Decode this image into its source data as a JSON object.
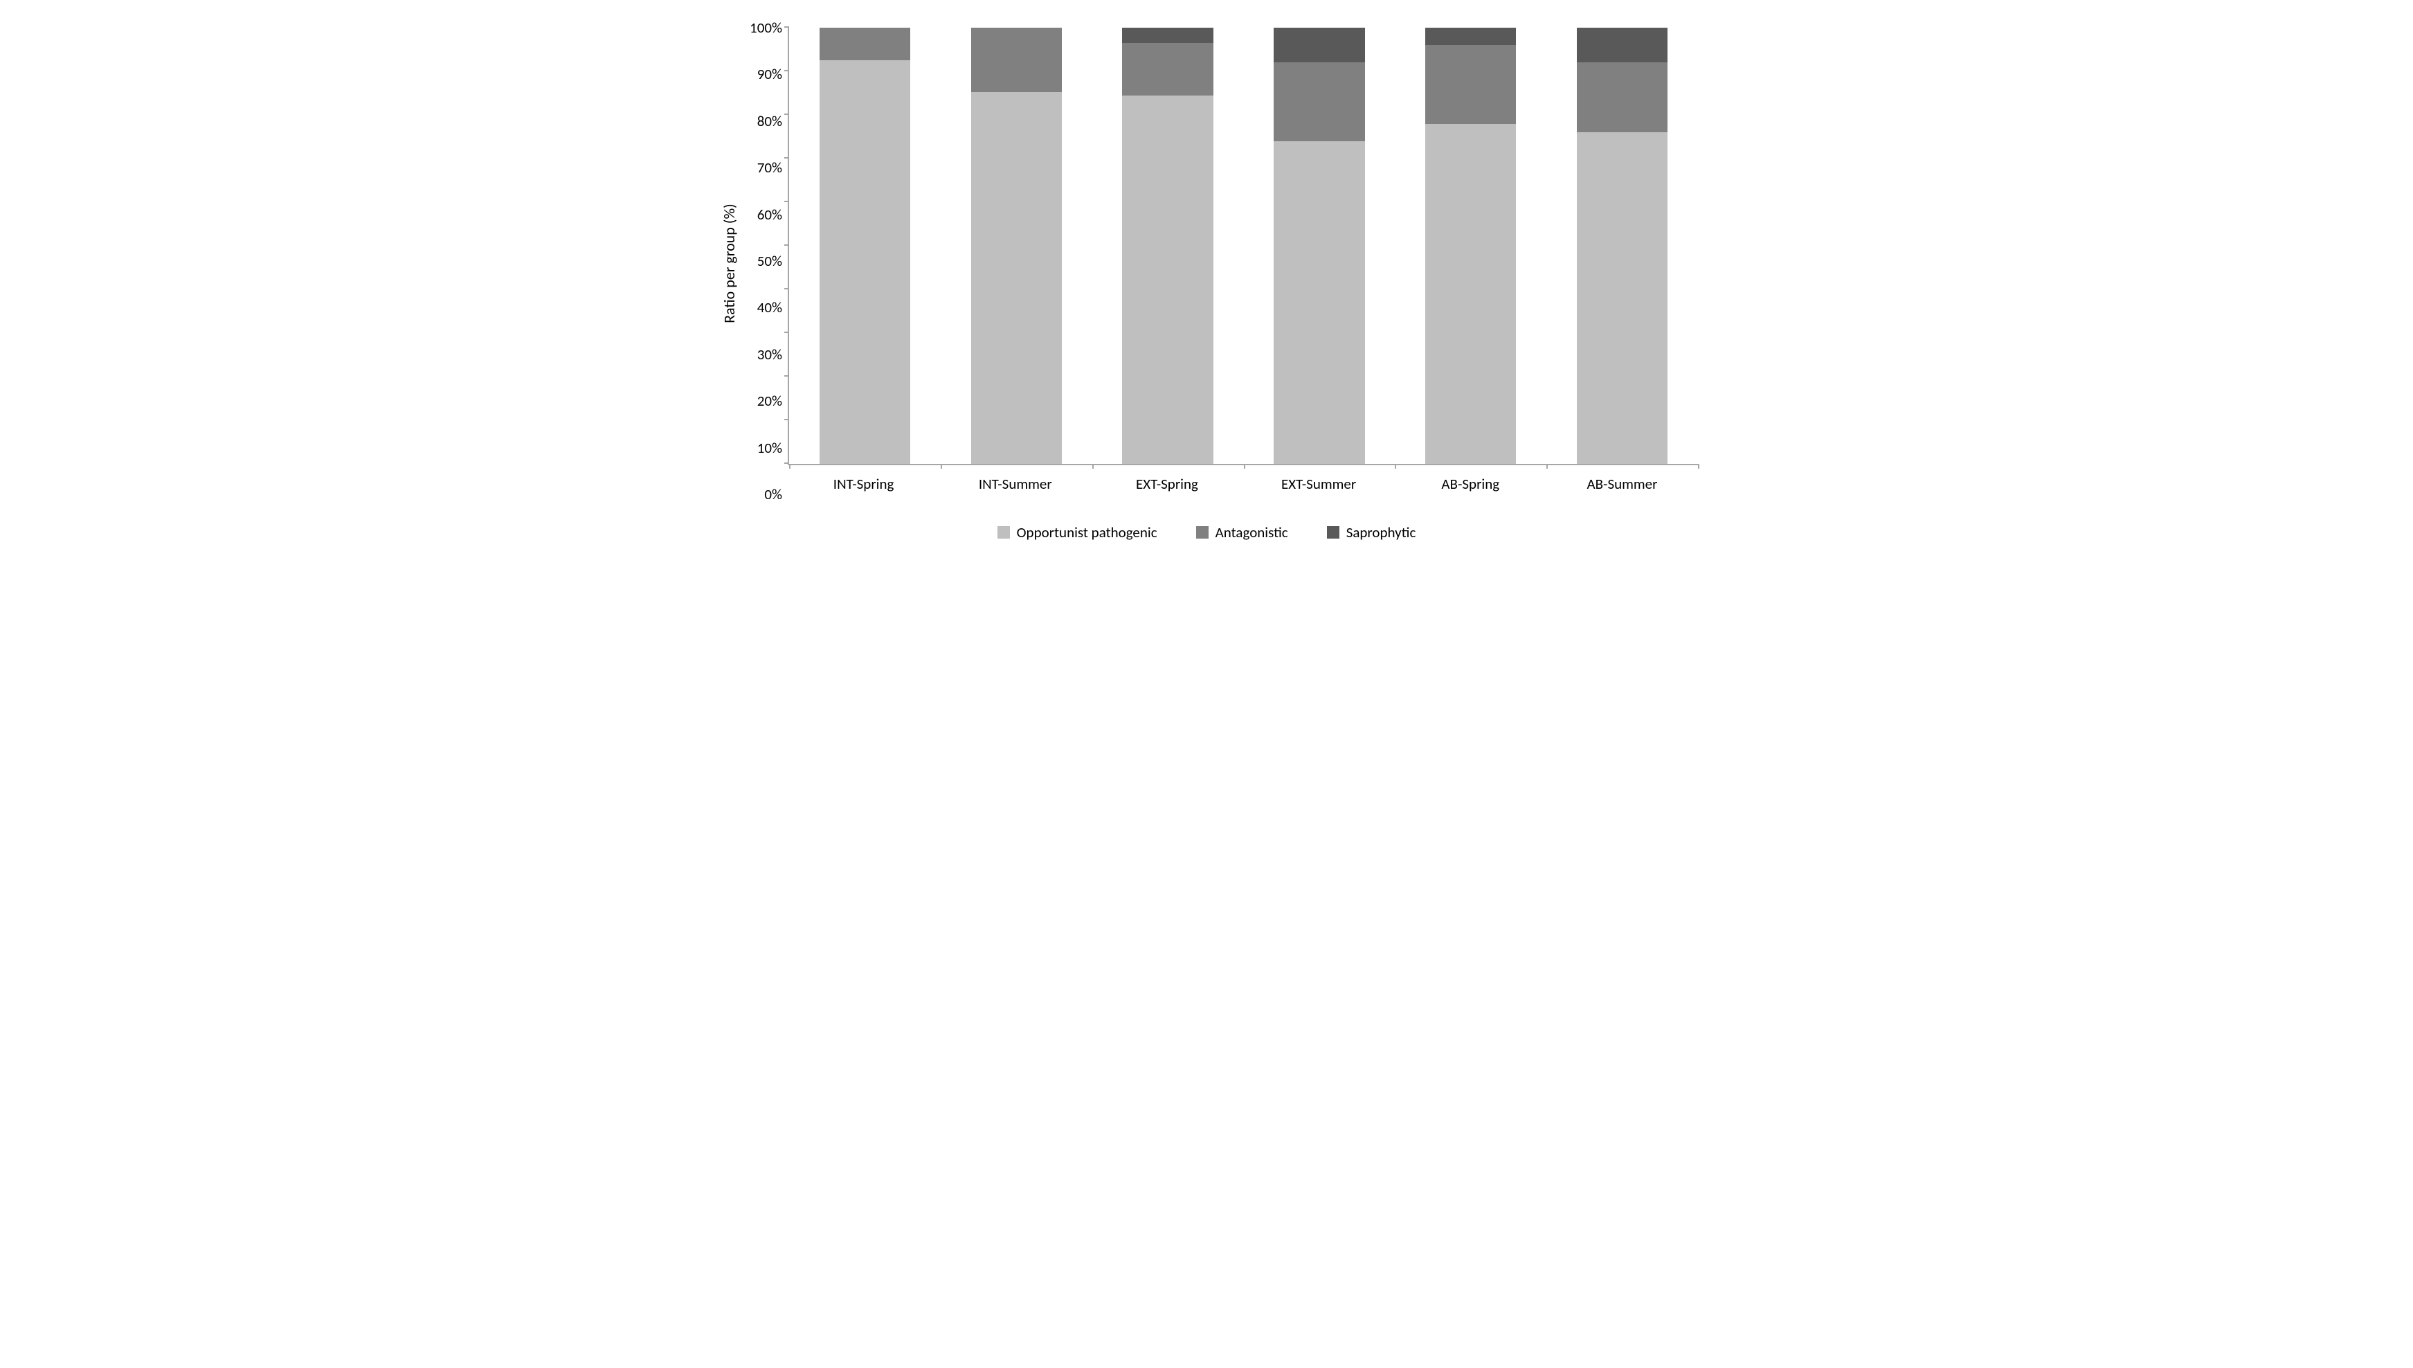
{
  "chart": {
    "type": "bar-stacked",
    "ylabel": "Ratio per group (%)",
    "ylim": [
      0,
      100
    ],
    "ytick_step": 10,
    "yticks": [
      "0%",
      "10%",
      "20%",
      "30%",
      "40%",
      "50%",
      "60%",
      "70%",
      "80%",
      "90%",
      "100%"
    ],
    "categories": [
      "INT-Spring",
      "INT-Summer",
      "EXT-Spring",
      "EXT-Summer",
      "AB-Spring",
      "AB-Summer"
    ],
    "series": [
      {
        "name": "Opportunist pathogenic",
        "color": "#bfbfbf"
      },
      {
        "name": "Antagonistic",
        "color": "#808080"
      },
      {
        "name": "Saprophytic",
        "color": "#595959"
      }
    ],
    "values": {
      "opportunist_pathogenic": [
        92.5,
        85.2,
        84.5,
        74.0,
        78.0,
        76.0
      ],
      "antagonistic": [
        7.5,
        14.8,
        12.0,
        18.0,
        18.0,
        16.0
      ],
      "saprophytic": [
        0.0,
        0.0,
        3.5,
        8.0,
        4.0,
        8.0
      ]
    },
    "bar_width": 0.6,
    "background_color": "#ffffff",
    "axis_color": "#a6a6a6",
    "text_color": "#000000",
    "title_fontsize": 22,
    "label_fontsize": 21
  }
}
